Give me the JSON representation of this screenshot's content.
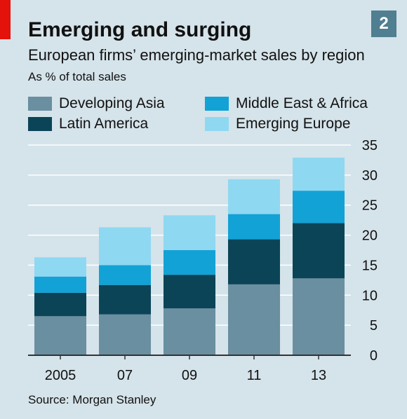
{
  "header": {
    "title": "Emerging and surging",
    "subtitle": "European firms’ emerging-market sales by region",
    "unit": "As % of total sales",
    "badge": "2"
  },
  "footer": {
    "source": "Source: Morgan Stanley"
  },
  "colors": {
    "background": "#d5e3ea",
    "accent": "#e3120b",
    "badge": "#4f7f90",
    "gridline": "#ffffff",
    "axis": "#333333"
  },
  "chart_data": {
    "type": "bar",
    "stacked": true,
    "categories": [
      "2005",
      "07",
      "09",
      "11",
      "13"
    ],
    "series": [
      {
        "name": "Developing Asia",
        "color": "#6a8fa1",
        "values": [
          6.5,
          6.8,
          7.8,
          11.8,
          12.8
        ]
      },
      {
        "name": "Latin America",
        "color": "#0b4457",
        "values": [
          3.9,
          4.9,
          5.6,
          7.5,
          9.2
        ]
      },
      {
        "name": "Middle East & Africa",
        "color": "#12a2d6",
        "values": [
          2.7,
          3.3,
          4.1,
          4.2,
          5.4
        ]
      },
      {
        "name": "Emerging Europe",
        "color": "#8fd8f2",
        "values": [
          3.2,
          6.3,
          5.8,
          5.8,
          5.5
        ]
      }
    ],
    "ylim": [
      0,
      35
    ],
    "yticks": [
      0,
      5,
      10,
      15,
      20,
      25,
      30,
      35
    ],
    "y_axis_side": "right",
    "grid": true,
    "legend_position": "top"
  }
}
